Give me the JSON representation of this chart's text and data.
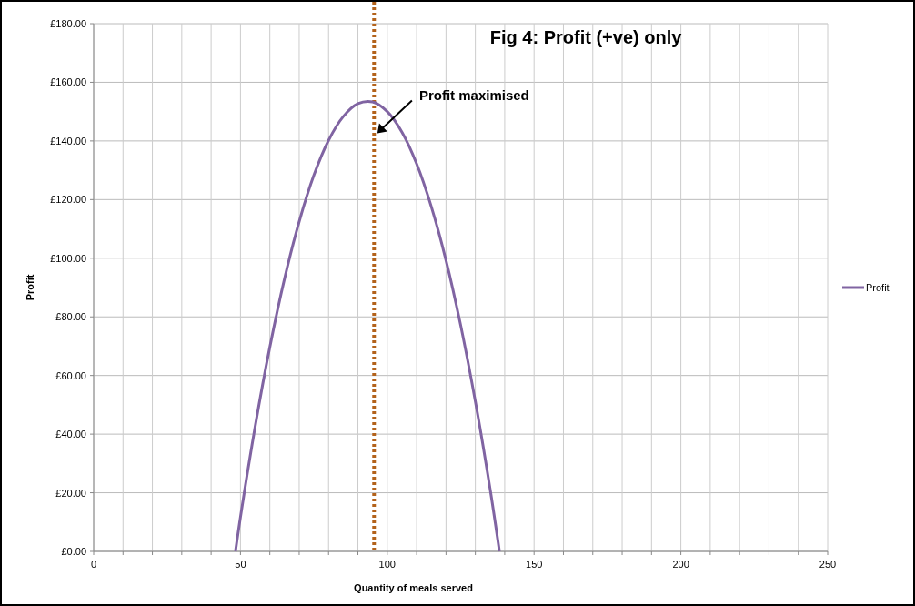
{
  "chart_data": {
    "type": "line",
    "title": "Fig 4: Profit (+ve) only",
    "xlabel": "Quantity of meals served",
    "ylabel": "Profit",
    "x": [
      48.3,
      50,
      55,
      60,
      65,
      70,
      75,
      80,
      85,
      90,
      95,
      100,
      105,
      110,
      115,
      120,
      125,
      130,
      135,
      138.2
    ],
    "series": [
      {
        "name": "Profit",
        "color": "#8064a2",
        "values": [
          0,
          11.7,
          42.6,
          69.7,
          93,
          112.5,
          128.3,
          140.2,
          148.3,
          152.7,
          153.3,
          150,
          143,
          132.2,
          117.6,
          99.3,
          77.1,
          51.1,
          21.4,
          0
        ]
      }
    ],
    "xlim": [
      0,
      250
    ],
    "xticks": [
      0,
      {
        "value": 10,
        "label": null
      },
      {
        "value": 20,
        "label": null
      },
      {
        "value": 30,
        "label": null
      },
      {
        "value": 40,
        "label": null
      },
      50,
      {
        "value": 60,
        "label": null
      },
      {
        "value": 70,
        "label": null
      },
      {
        "value": 80,
        "label": null
      },
      {
        "value": 90,
        "label": null
      },
      100,
      {
        "value": 110,
        "label": null
      },
      {
        "value": 120,
        "label": null
      },
      {
        "value": 130,
        "label": null
      },
      {
        "value": 140,
        "label": null
      },
      150,
      {
        "value": 160,
        "label": null
      },
      {
        "value": 170,
        "label": null
      },
      {
        "value": 180,
        "label": null
      },
      {
        "value": 190,
        "label": null
      },
      200,
      {
        "value": 210,
        "label": null
      },
      {
        "value": 220,
        "label": null
      },
      {
        "value": 230,
        "label": null
      },
      {
        "value": 240,
        "label": null
      },
      250
    ],
    "ylim": [
      0,
      180
    ],
    "yticks": [
      {
        "value": 0,
        "label": "£0.00"
      },
      {
        "value": 20,
        "label": "£20.00"
      },
      {
        "value": 40,
        "label": "£40.00"
      },
      {
        "value": 60,
        "label": "£60.00"
      },
      {
        "value": 80,
        "label": "£80.00"
      },
      {
        "value": 100,
        "label": "£100.00"
      },
      {
        "value": 120,
        "label": "£120.00"
      },
      {
        "value": 140,
        "label": "£140.00"
      },
      {
        "value": 160,
        "label": "£160.00"
      },
      {
        "value": 180,
        "label": "£180.00"
      }
    ],
    "ref_lines": [
      {
        "axis": "x",
        "value": 95.5,
        "color": "#b3621b",
        "line_style": "dotted"
      }
    ],
    "annotations": [
      {
        "text": "Profit maximised",
        "x": 96,
        "y": 142
      }
    ],
    "grid": true,
    "legend": "right",
    "line_style": "solid"
  }
}
